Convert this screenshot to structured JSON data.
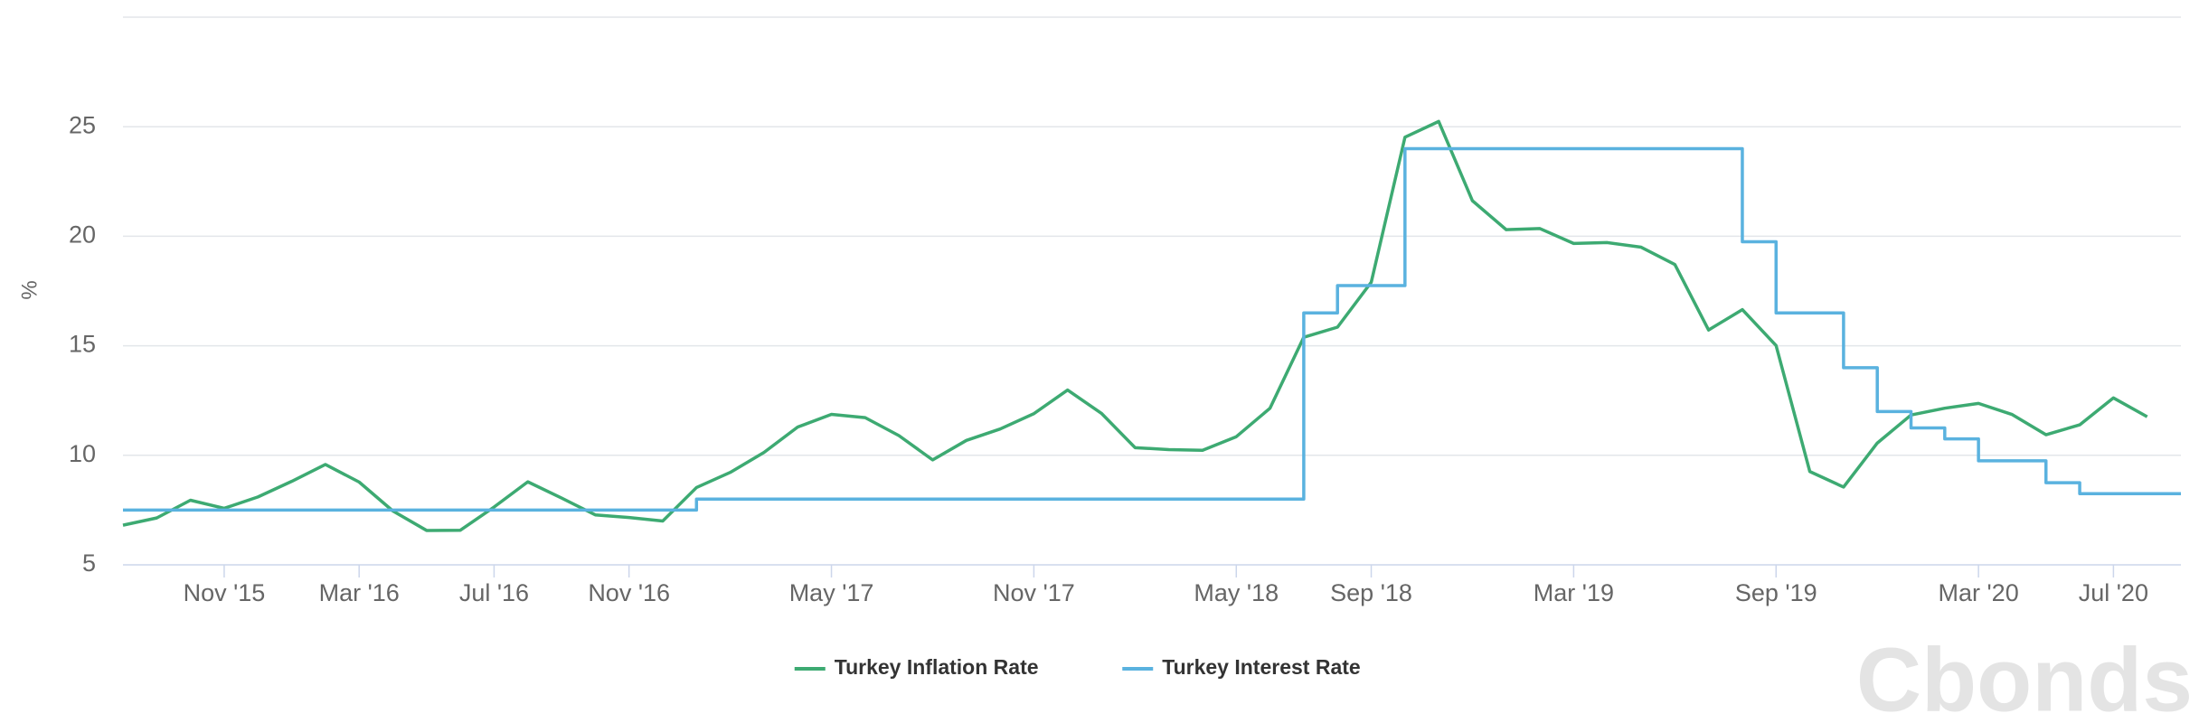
{
  "chart_data": {
    "type": "line",
    "y_label": "%",
    "xlim": [
      "2015-08",
      "2020-09"
    ],
    "xticks": [
      {
        "value": "2015-11",
        "label": "Nov '15"
      },
      {
        "value": "2016-03",
        "label": "Mar '16"
      },
      {
        "value": "2016-07",
        "label": "Jul '16"
      },
      {
        "value": "2016-11",
        "label": "Nov '16"
      },
      {
        "value": "2017-05",
        "label": "May '17"
      },
      {
        "value": "2017-11",
        "label": "Nov '17"
      },
      {
        "value": "2018-05",
        "label": "May '18"
      },
      {
        "value": "2018-09",
        "label": "Sep '18"
      },
      {
        "value": "2019-03",
        "label": "Mar '19"
      },
      {
        "value": "2019-09",
        "label": "Sep '19"
      },
      {
        "value": "2020-03",
        "label": "Mar '20"
      },
      {
        "value": "2020-07",
        "label": "Jul '20"
      }
    ],
    "ylim": [
      5,
      30
    ],
    "yticks": [
      5,
      10,
      15,
      20,
      25
    ],
    "grid": true,
    "legend": "bottom",
    "series": [
      {
        "name": "Turkey Inflation Rate",
        "color": "#3daa72",
        "step": false,
        "x": [
          "2015-08",
          "2015-09",
          "2015-10",
          "2015-11",
          "2015-12",
          "2016-01",
          "2016-02",
          "2016-03",
          "2016-04",
          "2016-05",
          "2016-06",
          "2016-07",
          "2016-08",
          "2016-09",
          "2016-10",
          "2016-11",
          "2016-12",
          "2017-01",
          "2017-02",
          "2017-03",
          "2017-04",
          "2017-05",
          "2017-06",
          "2017-07",
          "2017-08",
          "2017-09",
          "2017-10",
          "2017-11",
          "2017-12",
          "2018-01",
          "2018-02",
          "2018-03",
          "2018-04",
          "2018-05",
          "2018-06",
          "2018-07",
          "2018-08",
          "2018-09",
          "2018-10",
          "2018-11",
          "2018-12",
          "2019-01",
          "2019-02",
          "2019-03",
          "2019-04",
          "2019-05",
          "2019-06",
          "2019-07",
          "2019-08",
          "2019-09",
          "2019-10",
          "2019-11",
          "2019-12",
          "2020-01",
          "2020-02",
          "2020-03",
          "2020-04",
          "2020-05",
          "2020-06",
          "2020-07",
          "2020-08"
        ],
        "values": [
          6.81,
          7.14,
          7.95,
          7.58,
          8.1,
          8.81,
          9.58,
          8.78,
          7.46,
          6.57,
          6.58,
          7.64,
          8.79,
          8.05,
          7.28,
          7.16,
          7.0,
          8.53,
          9.22,
          10.13,
          11.29,
          11.87,
          11.72,
          10.9,
          9.79,
          10.68,
          11.2,
          11.9,
          12.98,
          11.92,
          10.35,
          10.26,
          10.23,
          10.85,
          12.15,
          15.39,
          15.85,
          17.9,
          24.52,
          25.24,
          21.62,
          20.3,
          20.35,
          19.67,
          19.71,
          19.5,
          18.71,
          15.72,
          16.65,
          15.01,
          9.26,
          8.55,
          10.56,
          11.84,
          12.15,
          12.37,
          11.86,
          10.94,
          11.39,
          12.62,
          11.76
        ]
      },
      {
        "name": "Turkey Interest Rate",
        "color": "#5ab2df",
        "step": true,
        "x": [
          "2015-08",
          "2017-01",
          "2018-07",
          "2018-08",
          "2018-10",
          "2019-08",
          "2019-09",
          "2019-11",
          "2019-12",
          "2020-01",
          "2020-02",
          "2020-03",
          "2020-05",
          "2020-06"
        ],
        "values": [
          7.5,
          8,
          16.5,
          17.75,
          24,
          19.75,
          16.5,
          14,
          12,
          11.25,
          10.75,
          9.75,
          8.75,
          8.25
        ]
      }
    ],
    "watermark": "Cbonds"
  }
}
